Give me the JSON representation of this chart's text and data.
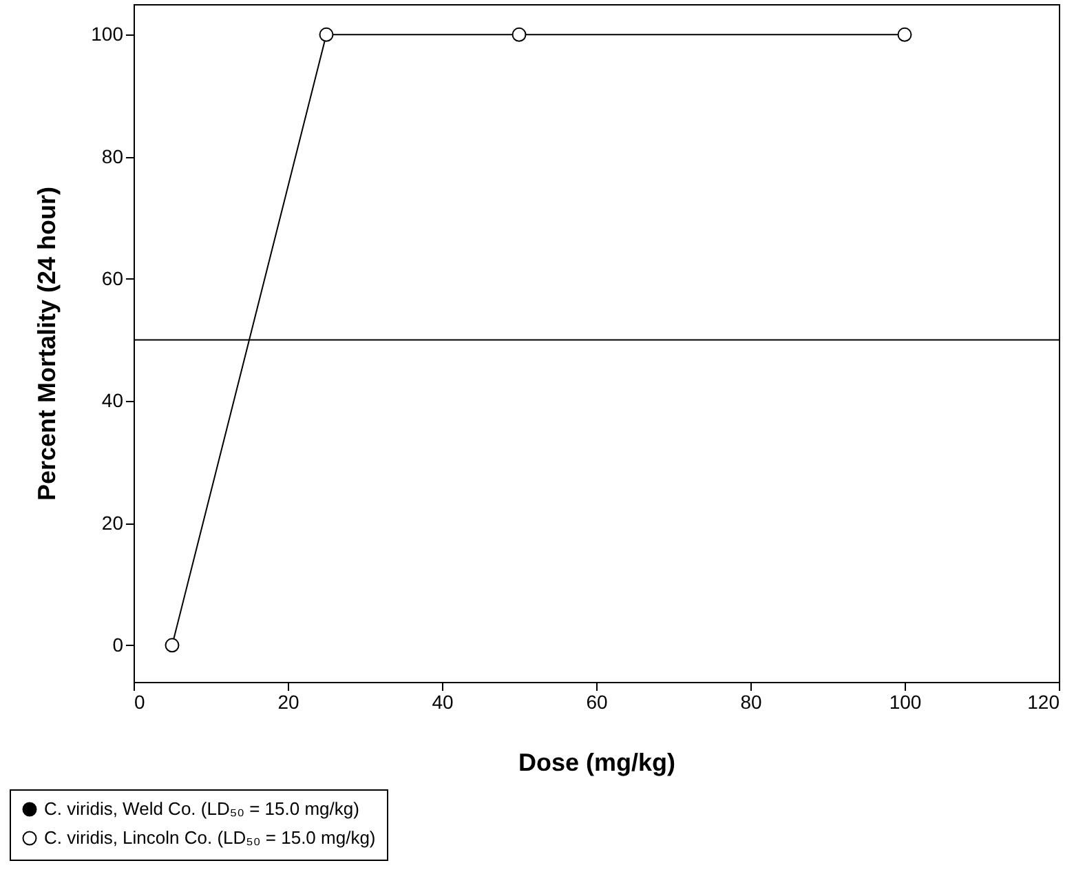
{
  "chart_data": {
    "type": "line",
    "xlabel": "Dose (mg/kg)",
    "ylabel": "Percent Mortality (24 hour)",
    "x": [
      5,
      25,
      50,
      100
    ],
    "series": [
      {
        "name": "C. viridis, Weld Co. (LD₅₀ = 15.0 mg/kg)",
        "color": "#000000",
        "values": [
          null,
          null,
          null,
          null
        ]
      },
      {
        "name": "C. viridis, Lincoln Co. (LD₅₀ = 15.0 mg/kg)",
        "color": "#ffffff",
        "values": [
          0,
          100,
          100,
          100
        ]
      }
    ],
    "xlim": [
      0,
      120
    ],
    "xticks": [
      0,
      20,
      40,
      60,
      80,
      100,
      120
    ],
    "ylim": [
      -6,
      105
    ],
    "yticks": [
      0,
      20,
      40,
      60,
      80,
      100
    ],
    "ref_lines": [
      {
        "axis": "y",
        "value": 50
      }
    ],
    "marker": "circle",
    "line_style": "solid",
    "grid": false,
    "legend": "bottom"
  }
}
